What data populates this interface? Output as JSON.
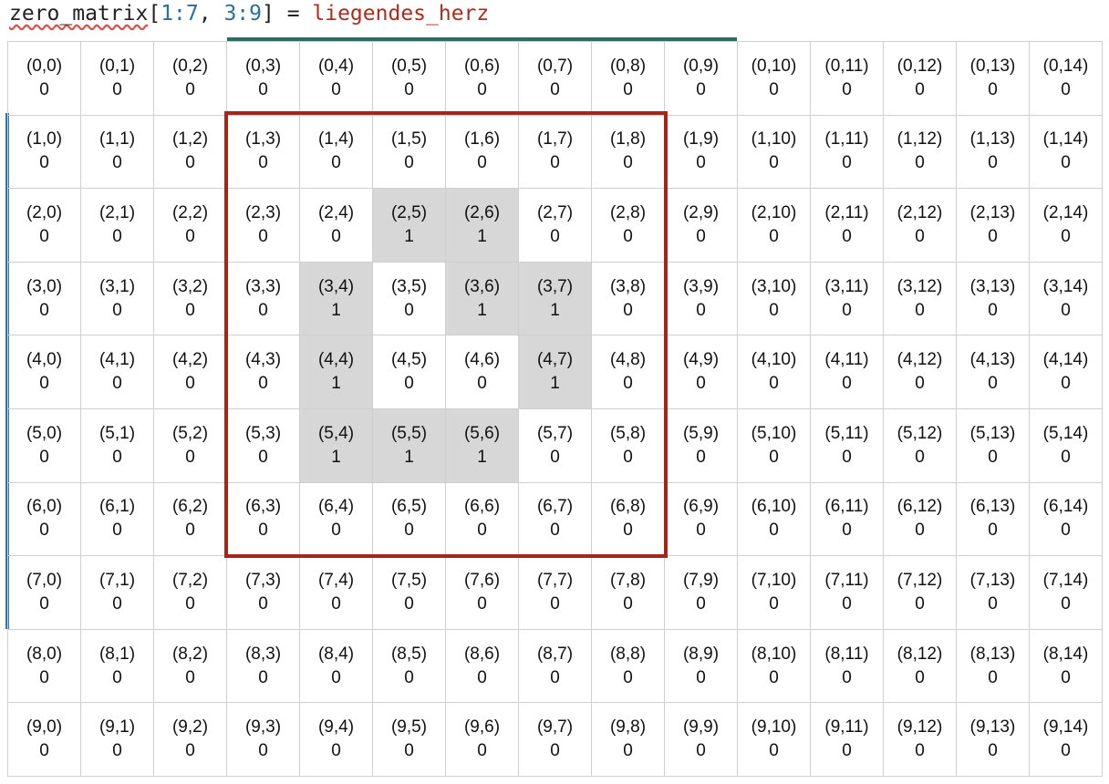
{
  "code": {
    "var": "zero_matrix",
    "open": "[",
    "row_slice": "1:7",
    "sep": ", ",
    "col_slice": "3:9",
    "close": "]",
    "assign": " = ",
    "rhs": "liegendes_herz"
  },
  "grid": {
    "rows": 10,
    "cols": 15,
    "ones": [
      [
        2,
        5
      ],
      [
        2,
        6
      ],
      [
        3,
        4
      ],
      [
        3,
        6
      ],
      [
        3,
        7
      ],
      [
        4,
        4
      ],
      [
        4,
        7
      ],
      [
        5,
        4
      ],
      [
        5,
        5
      ],
      [
        5,
        6
      ]
    ]
  },
  "colors": {
    "highlight": "#d7d7d7",
    "slice_box": "#a3261b",
    "row_bracket": "#2f76ad",
    "col_bracket": "#2c6b69"
  }
}
